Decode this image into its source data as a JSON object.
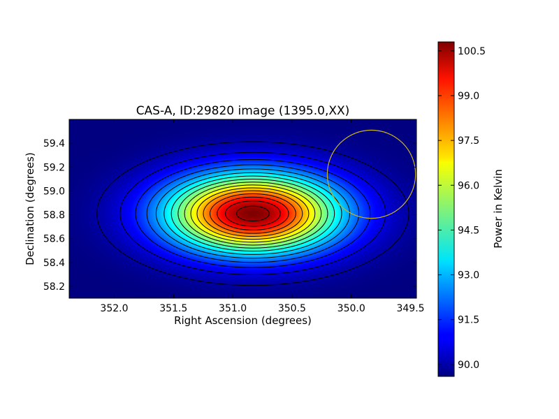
{
  "chart_data": {
    "type": "heatmap",
    "title": "CAS-A, ID:29820 image (1395.0,XX)",
    "xlabel": "Right Ascension (degrees)",
    "ylabel": "Declination (degrees)",
    "xlim": [
      352.38,
      349.45
    ],
    "ylim": [
      58.1,
      59.6
    ],
    "x_reversed": true,
    "x_ticks": [
      {
        "value": 352.0,
        "label": "352.0"
      },
      {
        "value": 351.5,
        "label": "351.5"
      },
      {
        "value": 351.0,
        "label": "351.0"
      },
      {
        "value": 350.5,
        "label": "350.5"
      },
      {
        "value": 350.0,
        "label": "350.0"
      },
      {
        "value": 349.5,
        "label": "349.5"
      }
    ],
    "y_ticks": [
      {
        "value": 58.2,
        "label": "58.2"
      },
      {
        "value": 58.4,
        "label": "58.4"
      },
      {
        "value": 58.6,
        "label": "58.6"
      },
      {
        "value": 58.8,
        "label": "58.8"
      },
      {
        "value": 59.0,
        "label": "59.0"
      },
      {
        "value": 59.2,
        "label": "59.2"
      },
      {
        "value": 59.4,
        "label": "59.4"
      }
    ],
    "colormap": "jet",
    "peak": {
      "ra": 350.83,
      "dec": 58.81,
      "value": 100.8
    },
    "background_value": 89.6,
    "fwhm_deg": {
      "ra": 1.2,
      "dec": 0.55
    },
    "contour_levels": [
      90.0,
      90.6,
      91.3,
      92.0,
      92.7,
      93.4,
      94.1,
      94.8,
      95.5,
      96.2,
      96.9,
      97.6,
      98.3,
      99.0,
      99.7,
      100.4
    ],
    "marker_circle": {
      "ra": 349.83,
      "dec": 59.14,
      "radius_deg_dec": 0.37,
      "color": "#c8b420"
    },
    "colorbar": {
      "label": "Power in Kelvin",
      "vmin": 89.6,
      "vmax": 100.8,
      "ticks": [
        {
          "value": 90.0,
          "label": "90.0"
        },
        {
          "value": 91.5,
          "label": "91.5"
        },
        {
          "value": 93.0,
          "label": "93.0"
        },
        {
          "value": 94.5,
          "label": "94.5"
        },
        {
          "value": 96.0,
          "label": "96.0"
        },
        {
          "value": 97.5,
          "label": "97.5"
        },
        {
          "value": 99.0,
          "label": "99.0"
        },
        {
          "value": 100.5,
          "label": "100.5"
        }
      ]
    }
  }
}
